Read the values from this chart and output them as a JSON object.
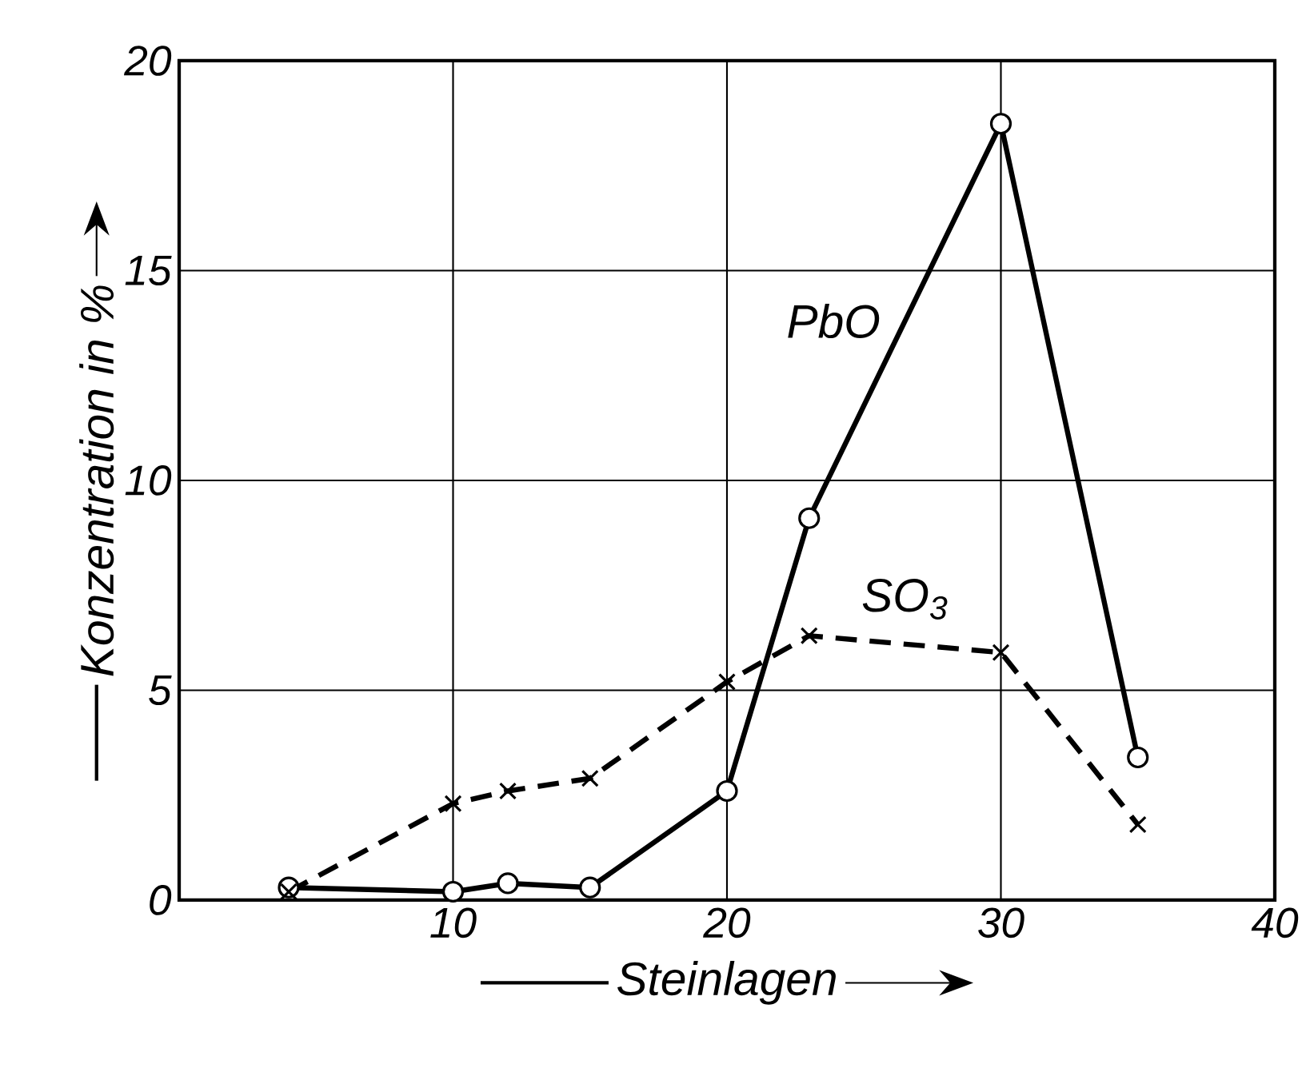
{
  "chart_data": {
    "type": "line",
    "xlabel": "Steinlagen",
    "ylabel": "Konzentration in %",
    "xlim": [
      0,
      40
    ],
    "ylim": [
      0,
      20
    ],
    "xticks": [
      10,
      20,
      30,
      40
    ],
    "yticks": [
      0,
      5,
      10,
      15,
      20
    ],
    "grid": true,
    "series": [
      {
        "name": "PbO",
        "color": "#000000",
        "marker": "circle",
        "line_style": "solid",
        "x": [
          4,
          10,
          12,
          15,
          20,
          23,
          30,
          35
        ],
        "values": [
          0.3,
          0.2,
          0.4,
          0.3,
          2.6,
          9.1,
          18.5,
          3.4
        ]
      },
      {
        "name": "SO$_{3}$",
        "color": "#000000",
        "marker": "cross",
        "line_style": "dashed",
        "x": [
          4,
          10,
          12,
          15,
          20,
          23,
          30,
          35
        ],
        "values": [
          0.2,
          2.3,
          2.6,
          2.9,
          5.2,
          6.3,
          5.9,
          1.8
        ]
      }
    ]
  }
}
